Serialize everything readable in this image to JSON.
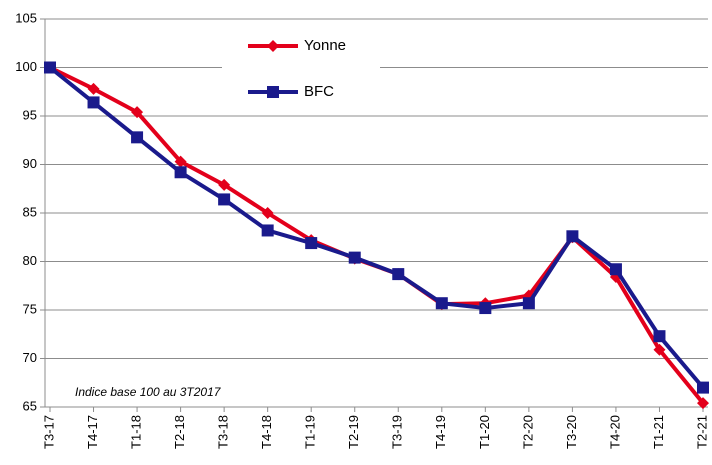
{
  "chart_data": {
    "type": "line",
    "annotation": "Indice base 100 au 3T2017",
    "categories": [
      "T3-17",
      "T4-17",
      "T1-18",
      "T2-18",
      "T3-18",
      "T4-18",
      "T1-19",
      "T2-19",
      "T3-19",
      "T4-19",
      "T1-20",
      "T2-20",
      "T3-20",
      "T4-20",
      "T1-21",
      "T2-21"
    ],
    "series": [
      {
        "name": "Yonne",
        "color": "#e3001b",
        "marker": "diamond",
        "values": [
          100,
          97.8,
          95.4,
          90.3,
          87.9,
          85.0,
          82.2,
          80.3,
          78.7,
          75.6,
          75.7,
          76.5,
          82.5,
          78.4,
          70.9,
          65.4
        ]
      },
      {
        "name": "BFC",
        "color": "#1a1a8c",
        "marker": "square",
        "values": [
          100,
          96.4,
          92.8,
          89.2,
          86.4,
          83.2,
          81.9,
          80.4,
          78.7,
          75.7,
          75.2,
          75.7,
          82.6,
          79.2,
          72.3,
          67.0
        ]
      }
    ],
    "ylim": [
      65,
      105
    ],
    "yticks": [
      65,
      70,
      75,
      80,
      85,
      90,
      95,
      100,
      105
    ],
    "grid": true,
    "legend": "top"
  }
}
